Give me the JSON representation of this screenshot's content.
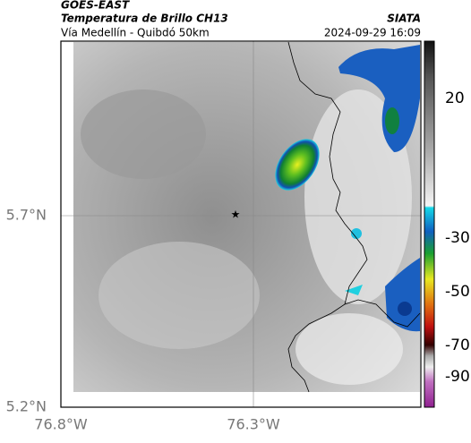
{
  "header": {
    "source": "GOES-EAST",
    "product": "Temperatura de Brillo CH13",
    "region": "Vía Medellín - Quibdó 50km",
    "agency": "SIATA",
    "datetime": "2024-09-29 16:09"
  },
  "axes": {
    "x_labels": [
      "76.8°W",
      "76.3°W"
    ],
    "y_labels": [
      "5.7°N",
      "5.2°N"
    ]
  },
  "colorbar": {
    "labels": [
      "20",
      "-30",
      "-50",
      "-70",
      "-90"
    ]
  }
}
